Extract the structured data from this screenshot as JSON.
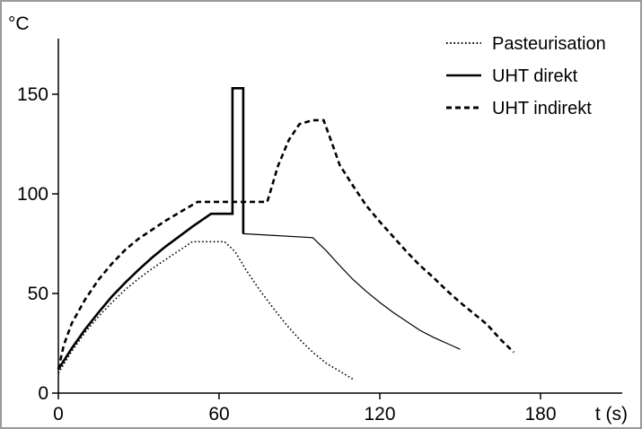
{
  "chart_data": {
    "type": "line",
    "title": "",
    "ylabel": "°C",
    "xlabel": "t (s)",
    "xlim": [
      0,
      210
    ],
    "ylim": [
      0,
      175
    ],
    "xticks": [
      0,
      60,
      120,
      180
    ],
    "yticks": [
      0,
      50,
      100,
      150
    ],
    "grid": false,
    "legend_position": "top-right",
    "series": [
      {
        "name": "Pasteurisation",
        "style": "dotted",
        "color": "#000000",
        "x": [
          0,
          5,
          10,
          15,
          20,
          25,
          30,
          35,
          40,
          45,
          50,
          62,
          66,
          70,
          75,
          80,
          85,
          90,
          95,
          100,
          105,
          110
        ],
        "y": [
          10,
          21,
          30.5,
          38.5,
          45.5,
          52,
          57.5,
          62.5,
          67,
          71.5,
          76,
          76,
          71,
          62,
          52,
          43,
          34.5,
          27,
          20.5,
          15,
          11,
          7
        ]
      },
      {
        "name": "UHT direkt",
        "style": "solid",
        "color": "#000000",
        "x": [
          0,
          5,
          10,
          15,
          20,
          25,
          30,
          35,
          40,
          45,
          50,
          57,
          65,
          65,
          69,
          69,
          95,
          100,
          105,
          110,
          115,
          120,
          125,
          130,
          135,
          140,
          145,
          150
        ],
        "y": [
          12,
          22.5,
          32,
          40.5,
          48.5,
          55.5,
          62,
          68,
          73.5,
          78.5,
          83.5,
          90,
          90,
          153,
          153,
          80,
          78,
          71.5,
          64,
          57,
          51,
          45.5,
          40.5,
          36,
          31.5,
          28,
          25,
          22
        ]
      },
      {
        "name": "UHT indirekt",
        "style": "dashed",
        "color": "#000000",
        "x": [
          0,
          2,
          5,
          10,
          15,
          20,
          25,
          30,
          35,
          40,
          45,
          52,
          78,
          82,
          86,
          90,
          95,
          99,
          102,
          105,
          110,
          115,
          120,
          125,
          130,
          135,
          140,
          145,
          150,
          155,
          160,
          165,
          170
        ],
        "y": [
          12,
          24,
          35,
          47,
          57,
          65,
          72,
          77.5,
          82,
          86.5,
          90.5,
          96,
          96,
          114,
          127,
          135,
          137,
          137,
          126,
          114.5,
          104,
          94,
          86,
          78.5,
          71,
          64,
          58,
          51.5,
          45.5,
          40,
          34.5,
          27,
          20.5
        ]
      }
    ]
  }
}
